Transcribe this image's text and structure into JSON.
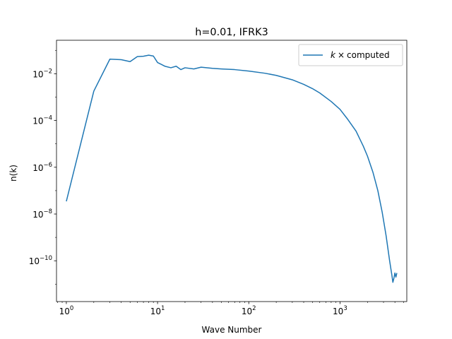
{
  "chart_data": {
    "type": "line",
    "title": "h=0.01, IFRK3",
    "xlabel": "Wave Number",
    "ylabel": "n(k)",
    "xscale": "log",
    "yscale": "log",
    "xlim": [
      0.78,
      5400
    ],
    "ylim": [
      1.8e-12,
      0.27
    ],
    "grid": false,
    "legend_position": "top-right",
    "x_ticks": [
      {
        "value": 1,
        "base": "10",
        "exp": "0"
      },
      {
        "value": 10,
        "base": "10",
        "exp": "1"
      },
      {
        "value": 100,
        "base": "10",
        "exp": "2"
      },
      {
        "value": 1000,
        "base": "10",
        "exp": "3"
      }
    ],
    "y_ticks": [
      {
        "value": 1e-10,
        "base": "10",
        "exp": "−10"
      },
      {
        "value": 1e-08,
        "base": "10",
        "exp": "−8"
      },
      {
        "value": 1e-06,
        "base": "10",
        "exp": "−6"
      },
      {
        "value": 0.0001,
        "base": "10",
        "exp": "−4"
      },
      {
        "value": 0.01,
        "base": "10",
        "exp": "−2"
      }
    ],
    "series": [
      {
        "name_parts": {
          "var": "k",
          "times": "×",
          "text": "computed"
        },
        "color": "#1f77b4",
        "points": [
          [
            1,
            3.5e-08
          ],
          [
            2,
            0.0018
          ],
          [
            3,
            0.042
          ],
          [
            4,
            0.04
          ],
          [
            5,
            0.033
          ],
          [
            6,
            0.054
          ],
          [
            7,
            0.056
          ],
          [
            8,
            0.062
          ],
          [
            9,
            0.057
          ],
          [
            10,
            0.03
          ],
          [
            11,
            0.025
          ],
          [
            12,
            0.021
          ],
          [
            14,
            0.018
          ],
          [
            16,
            0.021
          ],
          [
            18,
            0.015
          ],
          [
            20,
            0.018
          ],
          [
            25,
            0.016
          ],
          [
            30,
            0.019
          ],
          [
            40,
            0.017
          ],
          [
            50,
            0.016
          ],
          [
            70,
            0.015
          ],
          [
            100,
            0.013
          ],
          [
            150,
            0.0105
          ],
          [
            200,
            0.0085
          ],
          [
            300,
            0.0055
          ],
          [
            400,
            0.0035
          ],
          [
            500,
            0.0023
          ],
          [
            600,
            0.0015
          ],
          [
            800,
            0.00065
          ],
          [
            1000,
            0.0003
          ],
          [
            1200,
            0.00012
          ],
          [
            1500,
            3.5e-05
          ],
          [
            1800,
            8e-06
          ],
          [
            2000,
            3e-06
          ],
          [
            2300,
            6e-07
          ],
          [
            2600,
            1e-07
          ],
          [
            2900,
            1.2e-08
          ],
          [
            3200,
            1.2e-09
          ],
          [
            3500,
            1e-10
          ],
          [
            3700,
            2.5e-11
          ],
          [
            3800,
            1.2e-11
          ],
          [
            3900,
            1.8e-11
          ],
          [
            4000,
            3e-11
          ],
          [
            4100,
            2e-11
          ],
          [
            4200,
            3e-11
          ]
        ]
      }
    ]
  }
}
